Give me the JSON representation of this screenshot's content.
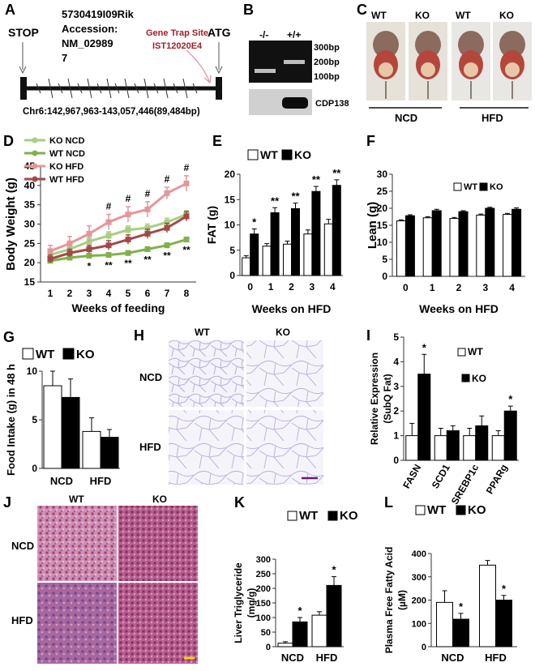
{
  "panels": {
    "A": {
      "letter": "A",
      "stop": "STOP",
      "atg": "ATG",
      "gene_line1": "5730419I09Rik",
      "gene_line2": "Accession:",
      "gene_line3": "NM_02989",
      "gene_line4": "7",
      "trap_line1": "Gene Trap Site",
      "trap_line2": "IST12020E4",
      "coords": "Chr6:142,967,963-143,057,446(89,484bp)"
    },
    "B": {
      "letter": "B",
      "lane1": "-/-",
      "lane2": "+/+",
      "m300": "300bp",
      "m200": "200bp",
      "m100": "100bp",
      "cdp": "CDP138"
    },
    "C": {
      "letter": "C",
      "l1": "WT",
      "l2": "KO",
      "l3": "WT",
      "l4": "KO",
      "ncd": "NCD",
      "hfd": "HFD"
    },
    "H": {
      "letter": "H",
      "wt": "WT",
      "ko": "KO",
      "ncd": "NCD",
      "hfd": "HFD"
    },
    "J": {
      "letter": "J",
      "wt": "WT",
      "ko": "KO",
      "ncd": "NCD",
      "hfd": "HFD"
    }
  },
  "colors": {
    "ko_ncd": "#a7cf7e",
    "wt_ncd": "#7fb24a",
    "ko_hfd": "#e2979b",
    "wt_hfd": "#a24a48",
    "trap_text": "#a31f25",
    "histo_fat": "#c9c6e6",
    "histo_liver": "#b25d86"
  },
  "chart_data": [
    {
      "id": "D",
      "letter": "D",
      "type": "line",
      "xlabel": "Weeks of feeding",
      "ylabel": "Body Weight (g)",
      "ylim": [
        15,
        45
      ],
      "yticks": [
        15,
        20,
        25,
        30,
        35,
        40,
        45
      ],
      "x": [
        1,
        2,
        3,
        4,
        5,
        6,
        7,
        8
      ],
      "legend_position": "top-left",
      "series": [
        {
          "name": "KO NCD",
          "color": "#a7cf7e",
          "values": [
            22,
            23.5,
            25.5,
            27,
            28.5,
            29,
            30.5,
            32.5
          ],
          "err": [
            0.8,
            1,
            1,
            1,
            1,
            1,
            1,
            1
          ]
        },
        {
          "name": "WT NCD",
          "color": "#7fb24a",
          "values": [
            20.5,
            21.3,
            21.8,
            22,
            22.5,
            23.5,
            24.5,
            26
          ],
          "err": [
            0.5,
            0.6,
            0.6,
            0.6,
            0.6,
            0.6,
            0.6,
            0.6
          ]
        },
        {
          "name": "KO HFD",
          "color": "#e2979b",
          "values": [
            23,
            25,
            27.5,
            30.5,
            32.5,
            33.8,
            38,
            40.5
          ],
          "err": [
            1.5,
            1.8,
            2,
            2,
            2,
            2,
            1.5,
            2
          ]
        },
        {
          "name": "WT HFD",
          "color": "#a24a48",
          "values": [
            21,
            22.5,
            23.5,
            24.5,
            26,
            27.5,
            29,
            32
          ],
          "err": [
            1,
            1,
            1,
            1.2,
            1.2,
            1.2,
            1.2,
            1.2
          ]
        }
      ],
      "hash_labels": [
        {
          "x": 4,
          "text": "#"
        },
        {
          "x": 5,
          "text": "#"
        },
        {
          "x": 6,
          "text": "#"
        },
        {
          "x": 7,
          "text": "#"
        },
        {
          "x": 8,
          "text": "#"
        }
      ],
      "star_labels": [
        {
          "x": 3,
          "text": "*"
        },
        {
          "x": 4,
          "text": "**"
        },
        {
          "x": 5,
          "text": "**"
        },
        {
          "x": 6,
          "text": "**"
        },
        {
          "x": 7,
          "text": "**"
        },
        {
          "x": 8,
          "text": "**"
        }
      ]
    },
    {
      "id": "E",
      "letter": "E",
      "type": "bar",
      "legend": [
        "WT",
        "KO"
      ],
      "xlabel": "Weeks on HFD",
      "ylabel": "FAT (g)",
      "ylim": [
        0,
        20
      ],
      "yticks": [
        0,
        5,
        10,
        15,
        20
      ],
      "categories": [
        "0",
        "1",
        "2",
        "3",
        "4"
      ],
      "series": [
        {
          "name": "WT",
          "values": [
            3.5,
            5.8,
            6.2,
            8.2,
            10.2
          ],
          "err": [
            0.4,
            0.5,
            0.6,
            0.8,
            0.9
          ]
        },
        {
          "name": "KO",
          "values": [
            8.2,
            12.4,
            13.2,
            16.6,
            17.8
          ],
          "err": [
            1,
            1,
            1.1,
            1,
            1.1
          ]
        }
      ],
      "annotations": [
        "*",
        "**",
        "**",
        "**",
        "**"
      ]
    },
    {
      "id": "F",
      "letter": "F",
      "type": "bar",
      "legend": [
        "WT",
        "KO"
      ],
      "xlabel": "Weeks on HFD",
      "ylabel": "Lean  (g)",
      "ylim": [
        0,
        30
      ],
      "yticks": [
        0,
        5,
        10,
        15,
        20,
        25,
        30
      ],
      "categories": [
        "0",
        "1",
        "2",
        "3",
        "4"
      ],
      "series": [
        {
          "name": "WT",
          "values": [
            16.3,
            17.2,
            17.0,
            18.0,
            18.2
          ],
          "err": [
            0.3,
            0.3,
            0.3,
            0.3,
            0.3
          ]
        },
        {
          "name": "KO",
          "values": [
            17.8,
            19.3,
            19.0,
            20.0,
            19.7
          ],
          "err": [
            0.3,
            0.4,
            0.3,
            0.3,
            0.4
          ]
        }
      ],
      "annotations": [
        "",
        "",
        "",
        "",
        ""
      ]
    },
    {
      "id": "G",
      "letter": "G",
      "type": "bar",
      "legend": [
        "WT",
        "KO"
      ],
      "xlabel": "",
      "ylabel": "Food Intake (g) in 48 h",
      "ylim": [
        0,
        10
      ],
      "yticks": [
        0,
        5,
        10
      ],
      "categories": [
        "NCD",
        "HFD"
      ],
      "series": [
        {
          "name": "WT",
          "values": [
            8.5,
            3.8
          ],
          "err": [
            1.5,
            1.4
          ]
        },
        {
          "name": "KO",
          "values": [
            7.3,
            3.2
          ],
          "err": [
            1.9,
            0.8
          ]
        }
      ],
      "annotations": [
        "",
        ""
      ]
    },
    {
      "id": "I",
      "letter": "I",
      "type": "bar",
      "legend": [
        "WT",
        "KO"
      ],
      "xlabel": "",
      "ylabel": "Relative Expression (SubQ Fat)",
      "ylim": [
        0,
        5
      ],
      "yticks": [
        0,
        1,
        2,
        3,
        4,
        5
      ],
      "categories": [
        "FASN",
        "SCD1",
        "SREBP1c",
        "PPARg"
      ],
      "series": [
        {
          "name": "WT",
          "values": [
            1.0,
            1.0,
            1.0,
            1.0
          ],
          "err": [
            0.5,
            0.3,
            0.3,
            0.2
          ]
        },
        {
          "name": "KO",
          "values": [
            3.5,
            1.2,
            1.4,
            2.0
          ],
          "err": [
            0.8,
            0.2,
            0.4,
            0.2
          ]
        }
      ],
      "annotations": [
        "*",
        "",
        "",
        "*"
      ]
    },
    {
      "id": "K",
      "letter": "K",
      "type": "bar",
      "legend": [
        "WT",
        "KO"
      ],
      "xlabel": "",
      "ylabel": "Liver Triglyceride (mg/g)",
      "ylim": [
        0,
        300
      ],
      "yticks": [
        0,
        50,
        100,
        150,
        200,
        250,
        300
      ],
      "categories": [
        "NCD",
        "HFD"
      ],
      "series": [
        {
          "name": "WT",
          "values": [
            12,
            108
          ],
          "err": [
            5,
            12
          ]
        },
        {
          "name": "KO",
          "values": [
            85,
            210
          ],
          "err": [
            15,
            30
          ]
        }
      ],
      "annotations": [
        "*",
        "*"
      ]
    },
    {
      "id": "L",
      "letter": "L",
      "type": "bar",
      "legend": [
        "WT",
        "KO"
      ],
      "xlabel": "",
      "ylabel": "Plasma Free Fatty Acid (µM)",
      "ylim": [
        0,
        400
      ],
      "yticks": [
        0,
        100,
        200,
        300,
        400
      ],
      "categories": [
        "NCD",
        "HFD"
      ],
      "series": [
        {
          "name": "WT",
          "values": [
            190,
            350
          ],
          "err": [
            50,
            20
          ]
        },
        {
          "name": "KO",
          "values": [
            118,
            200
          ],
          "err": [
            25,
            20
          ]
        }
      ],
      "annotations": [
        "*",
        "*"
      ]
    }
  ]
}
